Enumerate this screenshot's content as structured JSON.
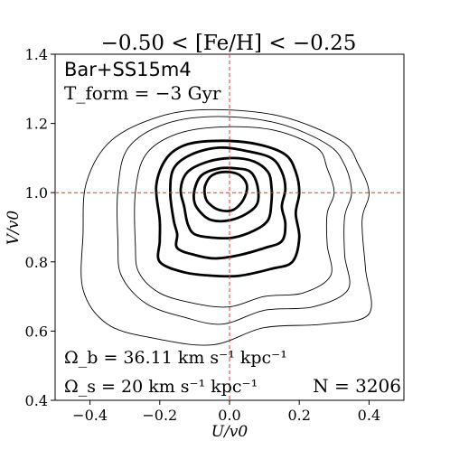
{
  "chart_data": {
    "type": "contour",
    "title": "−0.50 < [Fe/H] < −0.25",
    "xlabel": "U/v0",
    "ylabel": "V/v0",
    "xlim": [
      -0.5,
      0.5
    ],
    "ylim": [
      0.4,
      1.4
    ],
    "xticks": [
      -0.4,
      -0.2,
      0.0,
      0.2,
      0.4
    ],
    "xtick_labels": [
      "−0.4",
      "−0.2",
      "0.0",
      "0.2",
      "0.4"
    ],
    "yticks": [
      0.4,
      0.6,
      0.8,
      1.0,
      1.2,
      1.4
    ],
    "ytick_labels": [
      "0.4",
      "0.6",
      "0.8",
      "1.0",
      "1.2",
      "1.4"
    ],
    "grid": false,
    "reference_lines": {
      "x": 0.0,
      "y": 1.0,
      "color": "#e8352f",
      "style": "dashed"
    },
    "annotations": {
      "model": "Bar+SS15m4",
      "tform": "T_form = −3 Gyr",
      "omega_b": "Ω_b = 36.11 km s⁻¹ kpc⁻¹",
      "omega_s": "Ω_s = 20 km s⁻¹ kpc⁻¹",
      "n_stars": "N = 3206"
    },
    "contours": [
      {
        "weight": "thin",
        "points": [
          [
            -0.42,
            0.88
          ],
          [
            -0.42,
            0.72
          ],
          [
            -0.35,
            0.62
          ],
          [
            -0.22,
            0.58
          ],
          [
            -0.05,
            0.56
          ],
          [
            0.1,
            0.61
          ],
          [
            0.27,
            0.62
          ],
          [
            0.4,
            0.65
          ],
          [
            0.39,
            0.78
          ],
          [
            0.38,
            0.92
          ],
          [
            0.4,
            1.0
          ],
          [
            0.37,
            1.08
          ],
          [
            0.32,
            1.15
          ],
          [
            0.15,
            1.22
          ],
          [
            -0.05,
            1.24
          ],
          [
            -0.2,
            1.22
          ],
          [
            -0.34,
            1.15
          ],
          [
            -0.41,
            1.03
          ]
        ]
      },
      {
        "weight": "thin",
        "points": [
          [
            -0.32,
            0.86
          ],
          [
            -0.31,
            0.76
          ],
          [
            -0.24,
            0.68
          ],
          [
            -0.13,
            0.64
          ],
          [
            -0.02,
            0.62
          ],
          [
            0.1,
            0.66
          ],
          [
            0.24,
            0.67
          ],
          [
            0.34,
            0.72
          ],
          [
            0.33,
            0.82
          ],
          [
            0.33,
            0.93
          ],
          [
            0.35,
            1.0
          ],
          [
            0.33,
            1.08
          ],
          [
            0.28,
            1.14
          ],
          [
            0.14,
            1.2
          ],
          [
            -0.03,
            1.22
          ],
          [
            -0.18,
            1.2
          ],
          [
            -0.29,
            1.13
          ],
          [
            -0.32,
            1.01
          ]
        ]
      },
      {
        "weight": "thin",
        "points": [
          [
            -0.27,
            0.85
          ],
          [
            -0.26,
            0.77
          ],
          [
            -0.2,
            0.71
          ],
          [
            -0.1,
            0.68
          ],
          [
            0.0,
            0.67
          ],
          [
            0.1,
            0.7
          ],
          [
            0.21,
            0.71
          ],
          [
            0.29,
            0.76
          ],
          [
            0.28,
            0.85
          ],
          [
            0.28,
            0.94
          ],
          [
            0.3,
            1.0
          ],
          [
            0.28,
            1.07
          ],
          [
            0.25,
            1.13
          ],
          [
            0.13,
            1.18
          ],
          [
            -0.02,
            1.19
          ],
          [
            -0.15,
            1.17
          ],
          [
            -0.24,
            1.11
          ],
          [
            -0.27,
            1.0
          ]
        ]
      },
      {
        "weight": "thick",
        "points": [
          [
            -0.2,
            0.86
          ],
          [
            -0.2,
            0.8
          ],
          [
            -0.13,
            0.77
          ],
          [
            -0.05,
            0.76
          ],
          [
            0.03,
            0.76
          ],
          [
            0.12,
            0.78
          ],
          [
            0.18,
            0.8
          ],
          [
            0.2,
            0.87
          ],
          [
            0.19,
            0.94
          ],
          [
            0.2,
            1.0
          ],
          [
            0.19,
            1.06
          ],
          [
            0.16,
            1.11
          ],
          [
            0.08,
            1.14
          ],
          [
            -0.02,
            1.15
          ],
          [
            -0.12,
            1.14
          ],
          [
            -0.18,
            1.1
          ],
          [
            -0.21,
            1.02
          ],
          [
            -0.2,
            0.92
          ]
        ]
      },
      {
        "weight": "thick",
        "points": [
          [
            -0.15,
            0.88
          ],
          [
            -0.15,
            0.84
          ],
          [
            -0.1,
            0.82
          ],
          [
            -0.04,
            0.81
          ],
          [
            0.03,
            0.82
          ],
          [
            0.1,
            0.84
          ],
          [
            0.15,
            0.86
          ],
          [
            0.16,
            0.91
          ],
          [
            0.15,
            0.96
          ],
          [
            0.16,
            1.01
          ],
          [
            0.15,
            1.06
          ],
          [
            0.12,
            1.1
          ],
          [
            0.05,
            1.12
          ],
          [
            -0.03,
            1.13
          ],
          [
            -0.11,
            1.11
          ],
          [
            -0.16,
            1.07
          ],
          [
            -0.17,
            1.0
          ],
          [
            -0.16,
            0.92
          ]
        ]
      },
      {
        "weight": "thick",
        "points": [
          [
            -0.12,
            0.91
          ],
          [
            -0.1,
            0.88
          ],
          [
            -0.05,
            0.87
          ],
          [
            0.01,
            0.87
          ],
          [
            0.07,
            0.89
          ],
          [
            0.11,
            0.92
          ],
          [
            0.12,
            0.97
          ],
          [
            0.12,
            1.02
          ],
          [
            0.11,
            1.06
          ],
          [
            0.07,
            1.09
          ],
          [
            0.01,
            1.1
          ],
          [
            -0.06,
            1.09
          ],
          [
            -0.12,
            1.06
          ],
          [
            -0.14,
            1.01
          ],
          [
            -0.13,
            0.96
          ]
        ]
      },
      {
        "weight": "thick",
        "points": [
          [
            -0.08,
            0.94
          ],
          [
            -0.05,
            0.92
          ],
          [
            0.0,
            0.92
          ],
          [
            0.05,
            0.94
          ],
          [
            0.08,
            0.97
          ],
          [
            0.08,
            1.02
          ],
          [
            0.06,
            1.06
          ],
          [
            0.02,
            1.07
          ],
          [
            -0.03,
            1.07
          ],
          [
            -0.08,
            1.05
          ],
          [
            -0.1,
            1.01
          ],
          [
            -0.1,
            0.97
          ]
        ]
      },
      {
        "weight": "thick",
        "points": [
          [
            -0.06,
            0.97
          ],
          [
            -0.03,
            0.95
          ],
          [
            0.01,
            0.95
          ],
          [
            0.04,
            0.98
          ],
          [
            0.05,
            1.02
          ],
          [
            0.03,
            1.05
          ],
          [
            -0.01,
            1.06
          ],
          [
            -0.05,
            1.05
          ],
          [
            -0.07,
            1.02
          ],
          [
            -0.07,
            0.99
          ]
        ]
      }
    ]
  }
}
